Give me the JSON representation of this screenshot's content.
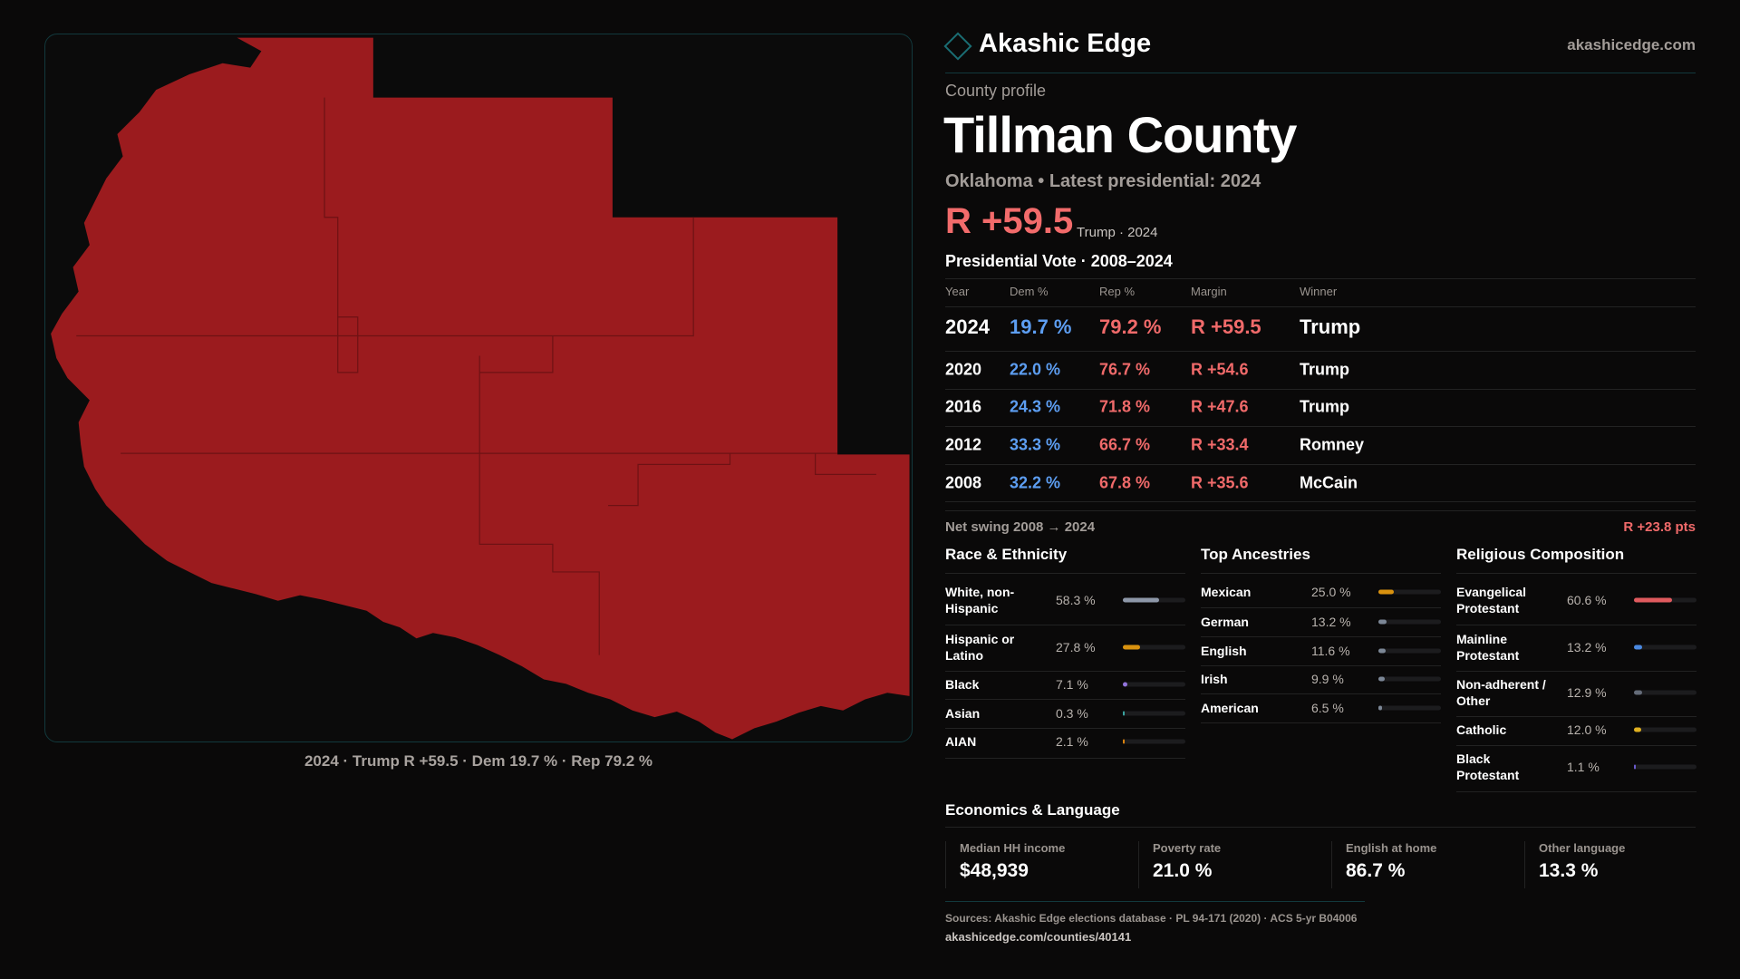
{
  "brand": {
    "name": "Akashic Edge",
    "url": "akashicedge.com",
    "logo_icon": "diamond-icon"
  },
  "profile": {
    "label": "County profile",
    "title": "Tillman County",
    "subtitle": "Oklahoma • Latest presidential: 2024",
    "margin": "R +59.5",
    "margin_note": "Trump · 2024"
  },
  "map": {
    "caption": "2024 · Trump R +59.5 · Dem 19.7 % · Rep 79.2 %",
    "fill_color": "#9b1b1e"
  },
  "vote": {
    "title": "Presidential Vote · 2008–2024",
    "headers": [
      "Year",
      "Dem %",
      "Rep %",
      "Margin",
      "Winner"
    ],
    "rows": [
      {
        "year": "2024",
        "dem": "19.7 %",
        "rep": "79.2 %",
        "margin": "R +59.5",
        "winner": "Trump"
      },
      {
        "year": "2020",
        "dem": "22.0 %",
        "rep": "76.7 %",
        "margin": "R +54.6",
        "winner": "Trump"
      },
      {
        "year": "2016",
        "dem": "24.3 %",
        "rep": "71.8 %",
        "margin": "R +47.6",
        "winner": "Trump"
      },
      {
        "year": "2012",
        "dem": "33.3 %",
        "rep": "66.7 %",
        "margin": "R +33.4",
        "winner": "Romney"
      },
      {
        "year": "2008",
        "dem": "32.2 %",
        "rep": "67.8 %",
        "margin": "R +35.6",
        "winner": "McCain"
      }
    ]
  },
  "swing": {
    "label": "Net swing 2008 → 2024",
    "value": "R +23.8 pts"
  },
  "race": {
    "title": "Race & Ethnicity",
    "rows": [
      {
        "label": "White, non-Hispanic",
        "value": "58.3 %",
        "pct": 58.3,
        "color": "#8d97a8"
      },
      {
        "label": "Hispanic or Latino",
        "value": "27.8 %",
        "pct": 27.8,
        "color": "#d9920f"
      },
      {
        "label": "Black",
        "value": "7.1 %",
        "pct": 7.1,
        "color": "#9274dc"
      },
      {
        "label": "Asian",
        "value": "0.3 %",
        "pct": 0.3,
        "color": "#3aa3a0"
      },
      {
        "label": "AIAN",
        "value": "2.1 %",
        "pct": 2.1,
        "color": "#d9820f"
      }
    ]
  },
  "ancestry": {
    "title": "Top Ancestries",
    "rows": [
      {
        "label": "Mexican",
        "value": "25.0 %",
        "pct": 25.0,
        "color": "#d9920f"
      },
      {
        "label": "German",
        "value": "13.2 %",
        "pct": 13.2,
        "color": "#7c8796"
      },
      {
        "label": "English",
        "value": "11.6 %",
        "pct": 11.6,
        "color": "#7c8796"
      },
      {
        "label": "Irish",
        "value": "9.9 %",
        "pct": 9.9,
        "color": "#7c8796"
      },
      {
        "label": "American",
        "value": "6.5 %",
        "pct": 6.5,
        "color": "#7c8796"
      }
    ]
  },
  "religion": {
    "title": "Religious Composition",
    "rows": [
      {
        "label": "Evangelical Protestant",
        "value": "60.6 %",
        "pct": 60.6,
        "color": "#e05a5e"
      },
      {
        "label": "Mainline Protestant",
        "value": "13.2 %",
        "pct": 13.2,
        "color": "#4a88e0"
      },
      {
        "label": "Non-adherent / Other",
        "value": "12.9 %",
        "pct": 12.9,
        "color": "#646b78"
      },
      {
        "label": "Catholic",
        "value": "12.0 %",
        "pct": 12.0,
        "color": "#e0b020"
      },
      {
        "label": "Black Protestant",
        "value": "1.1 %",
        "pct": 1.1,
        "color": "#6a5acd"
      }
    ]
  },
  "economics": {
    "title": "Economics & Language",
    "stats": [
      {
        "label": "Median HH income",
        "value": "$48,939"
      },
      {
        "label": "Poverty rate",
        "value": "21.0 %"
      },
      {
        "label": "English at home",
        "value": "86.7 %"
      },
      {
        "label": "Other language",
        "value": "13.3 %"
      }
    ]
  },
  "footer": {
    "sources": "Sources: Akashic Edge elections database · PL 94-171 (2020) · ACS 5-yr B04006",
    "url": "akashicedge.com/counties/40141"
  }
}
